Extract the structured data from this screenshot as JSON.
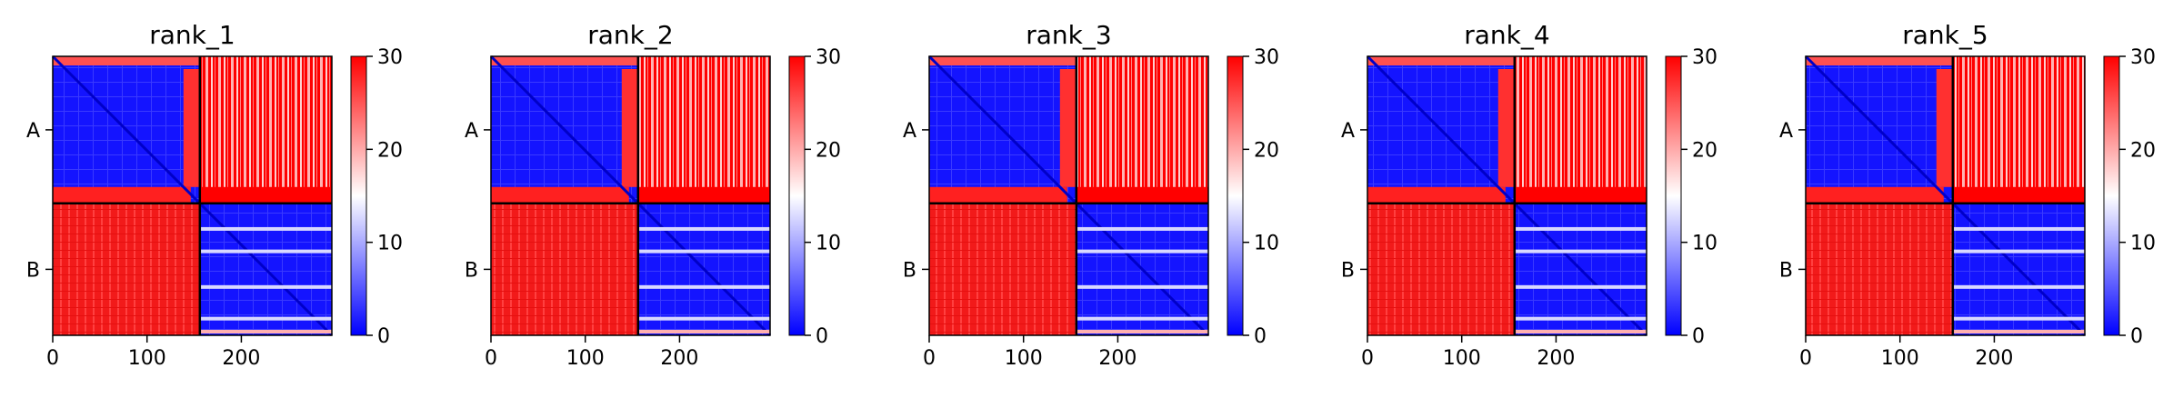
{
  "chart_data": {
    "type": "heatmap",
    "colormap": "bwr",
    "colors": {
      "low": "#0000ff",
      "mid": "#ffffff",
      "high": "#ff0000"
    },
    "value_range": [
      0,
      30
    ],
    "colorbar_ticks": [
      "0",
      "10",
      "20",
      "30"
    ],
    "x_ticks": [
      {
        "value": 0,
        "label": "0"
      },
      {
        "value": 100,
        "label": "100"
      },
      {
        "value": 200,
        "label": "200"
      }
    ],
    "x_range": [
      0,
      296
    ],
    "y_range": [
      0,
      296
    ],
    "chain_boundary": 156,
    "chains": [
      "A",
      "B"
    ],
    "panels": [
      {
        "title": "rank_1"
      },
      {
        "title": "rank_2"
      },
      {
        "title": "rank_3"
      },
      {
        "title": "rank_4"
      },
      {
        "title": "rank_5"
      }
    ]
  }
}
